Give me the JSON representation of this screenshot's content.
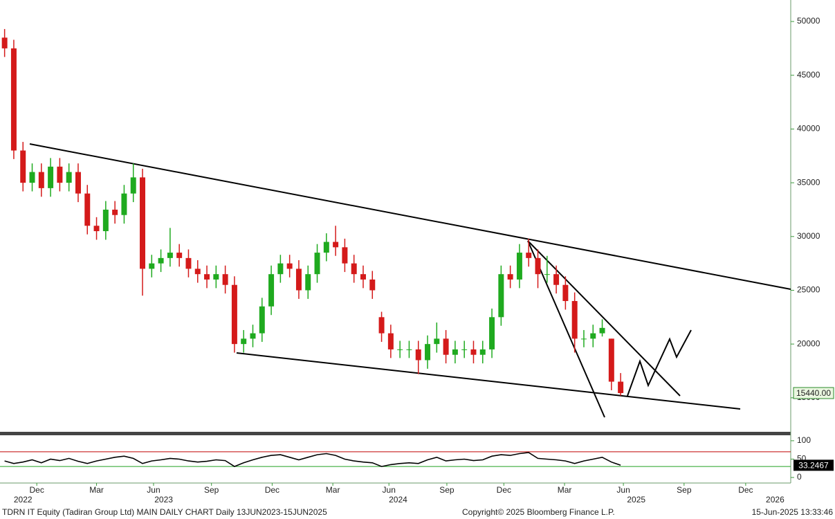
{
  "chart_data": [
    {
      "type": "candlestick",
      "xlim": [
        0,
        86
      ],
      "ylim": [
        11900,
        52000
      ],
      "yticks": [
        15000,
        20000,
        25000,
        30000,
        35000,
        40000,
        45000,
        50000
      ],
      "up_color": "#1faa1f",
      "down_color": "#d41a1a",
      "last_close_label": "15440.00",
      "open": [
        48500,
        47500,
        38000,
        35000,
        36000,
        34500,
        36500,
        35000,
        36000,
        34000,
        31000,
        30500,
        32500,
        32000,
        34000,
        35500,
        27000,
        27500,
        28000,
        28500,
        28000,
        27000,
        26500,
        26000,
        26500,
        25500,
        20000,
        20500,
        21000,
        23500,
        26500,
        27500,
        27000,
        25000,
        26500,
        28500,
        29500,
        29000,
        27500,
        26500,
        26000,
        22500,
        21000,
        19500,
        19500,
        19500,
        18500,
        20000,
        20500,
        19000,
        19500,
        19500,
        19000,
        19500,
        22500,
        26500,
        26000,
        28500,
        28000,
        26500,
        26500,
        25500,
        24000,
        20500,
        20500,
        21000,
        20500,
        16500
      ],
      "high": [
        49300,
        48300,
        38800,
        36800,
        36800,
        37300,
        37300,
        36800,
        36800,
        34800,
        31800,
        33300,
        33300,
        34800,
        36800,
        36300,
        28300,
        28800,
        30800,
        29300,
        28800,
        27800,
        27300,
        27300,
        27300,
        26300,
        21300,
        21800,
        24300,
        27300,
        28300,
        28300,
        27800,
        27300,
        29300,
        30300,
        31000,
        29800,
        28300,
        27300,
        26800,
        23000,
        21800,
        20300,
        20300,
        20300,
        20800,
        22000,
        21300,
        20300,
        20300,
        20300,
        20300,
        23300,
        27300,
        27300,
        29300,
        29800,
        28800,
        28200,
        27300,
        26300,
        24800,
        21300,
        21800,
        22300,
        20500,
        17300
      ],
      "low": [
        46700,
        37200,
        34200,
        34200,
        33700,
        33700,
        34200,
        34200,
        33200,
        30200,
        29700,
        29700,
        31200,
        31200,
        33200,
        24500,
        26200,
        26700,
        27200,
        27200,
        26200,
        25700,
        25200,
        25200,
        24700,
        19200,
        19200,
        19700,
        20200,
        22700,
        25700,
        26200,
        24200,
        24200,
        25700,
        27700,
        28200,
        26700,
        25700,
        25200,
        24200,
        20200,
        18700,
        18700,
        18700,
        17200,
        17700,
        19200,
        18200,
        18200,
        18700,
        18200,
        18200,
        18700,
        21700,
        25200,
        25200,
        27200,
        25200,
        25700,
        24700,
        23200,
        19200,
        19700,
        19700,
        20700,
        15700,
        15200
      ],
      "close": [
        47500,
        38000,
        35000,
        36000,
        34500,
        36500,
        35000,
        36000,
        34000,
        31000,
        30500,
        32500,
        32000,
        34000,
        35500,
        27000,
        27500,
        28000,
        28500,
        28000,
        27000,
        26500,
        26000,
        26500,
        25500,
        20000,
        20500,
        21000,
        23500,
        26500,
        27500,
        27000,
        25000,
        26500,
        28500,
        29500,
        29000,
        27500,
        26500,
        26000,
        25000,
        21000,
        19500,
        19500,
        19500,
        18500,
        20000,
        20500,
        19000,
        19500,
        19500,
        19000,
        19500,
        22500,
        26500,
        26000,
        28500,
        28000,
        26500,
        26500,
        25500,
        24000,
        20500,
        20500,
        21000,
        21500,
        16500,
        15440
      ]
    },
    {
      "type": "line",
      "xlim": [
        0,
        86
      ],
      "ylim": [
        0,
        113
      ],
      "yticks": [
        0,
        50,
        100
      ],
      "color": "#000000",
      "reference_lines": [
        {
          "value": 70,
          "color": "#c00000"
        },
        {
          "value": 30,
          "color": "#22a022"
        }
      ],
      "values": [
        45,
        38,
        42,
        48,
        40,
        50,
        46,
        52,
        44,
        38,
        45,
        50,
        55,
        58,
        52,
        38,
        45,
        48,
        52,
        50,
        45,
        42,
        44,
        48,
        46,
        30,
        40,
        48,
        55,
        60,
        62,
        55,
        48,
        55,
        62,
        65,
        60,
        50,
        45,
        42,
        40,
        30,
        35,
        38,
        40,
        38,
        48,
        55,
        45,
        48,
        50,
        46,
        48,
        58,
        62,
        60,
        65,
        68,
        52,
        50,
        48,
        45,
        38,
        45,
        50,
        55,
        42,
        33.2467
      ],
      "xticks": [
        {
          "value": 4,
          "label": "Dec"
        },
        {
          "value": 10.5,
          "label": "Mar"
        },
        {
          "value": 16.7,
          "label": "Jun"
        },
        {
          "value": 23,
          "label": "Sep"
        },
        {
          "value": 29.6,
          "label": "Dec"
        },
        {
          "value": 36.2,
          "label": "Mar"
        },
        {
          "value": 42.3,
          "label": "Jun"
        },
        {
          "value": 48.6,
          "label": "Sep"
        },
        {
          "value": 54.8,
          "label": "Dec"
        },
        {
          "value": 61.4,
          "label": "Mar"
        },
        {
          "value": 67.8,
          "label": "Jun"
        },
        {
          "value": 74.4,
          "label": "Sep"
        },
        {
          "value": 81.1,
          "label": "Dec"
        }
      ],
      "year_ticks": [
        {
          "value": 2.5,
          "label": "2022"
        },
        {
          "value": 17.8,
          "label": "2023"
        },
        {
          "value": 43.3,
          "label": "2024"
        },
        {
          "value": 69.2,
          "label": "2025"
        },
        {
          "value": 84.3,
          "label": "2026"
        }
      ]
    }
  ],
  "footer": {
    "left": "TDRN IT Equity (Tadiran Group Ltd) MAIN DAILY CHART  Daily 13JUN2023-15JUN2025",
    "center": "Copyright© 2025 Bloomberg Finance L.P.",
    "right": "15-Jun-2025 13:33:46"
  }
}
